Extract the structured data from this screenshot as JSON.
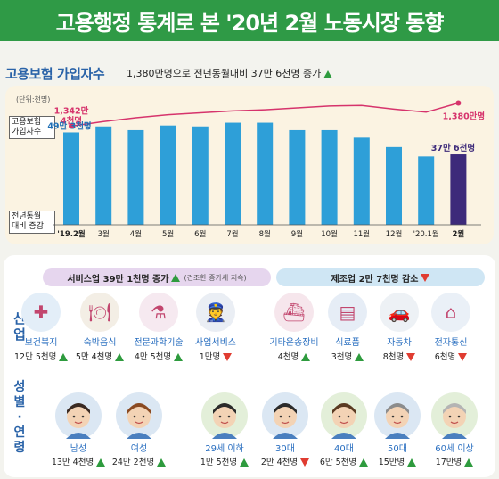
{
  "banner": {
    "title": "고용행정 통계로 본 '20년 2월 노동시장 동향"
  },
  "section1": {
    "title": "고용보험 가입자수",
    "subtitle": "1,380만명으로 전년동월대비 37만 6천명 증가"
  },
  "chart": {
    "unit": "(단위:천명)",
    "line_label": "고용보험\n가입자수",
    "bar_label": "전년동월\n대비 증감",
    "first_line_value": "1,342만\n4천명",
    "last_line_value": "1,380만명",
    "first_bar_value": "49만 3천명",
    "last_bar_value": "37만 6천명",
    "colors": {
      "bar": "#2e9fd8",
      "last_bar": "#3d2a7a",
      "line": "#d6336c"
    }
  },
  "chart_data": {
    "type": "bar",
    "categories": [
      "'19.2월",
      "3월",
      "4월",
      "5월",
      "6월",
      "7월",
      "8월",
      "9월",
      "10월",
      "11월",
      "12월",
      "'20.1월",
      "2월"
    ],
    "series": [
      {
        "name": "전년동월 대비 증감",
        "values": [
          493,
          525,
          505,
          530,
          525,
          545,
          545,
          505,
          505,
          465,
          415,
          365,
          376
        ]
      },
      {
        "name": "고용보험 가입자수",
        "values": [
          13424,
          13500,
          13560,
          13610,
          13640,
          13670,
          13690,
          13720,
          13750,
          13760,
          13700,
          13650,
          13800
        ]
      }
    ]
  },
  "industry": {
    "label": "산\n업",
    "service_pill": "서비스업 39만 1천명 증가",
    "service_note": "(견조한 증가세 지속)",
    "manufacturing_pill": "제조업 2만 7천명 감소",
    "items": [
      {
        "name": "보건복지",
        "value": "12만 5천명",
        "dir": "up",
        "icon": "health-icon"
      },
      {
        "name": "숙박음식",
        "value": "5만 4천명",
        "dir": "up",
        "icon": "food-icon"
      },
      {
        "name": "전문과학기술",
        "value": "4만 5천명",
        "dir": "up",
        "icon": "science-icon"
      },
      {
        "name": "사업서비스",
        "value": "1만명",
        "dir": "down",
        "icon": "security-guard-icon"
      },
      {
        "name": "기타운송장비",
        "value": "4천명",
        "dir": "up",
        "icon": "ship-icon"
      },
      {
        "name": "식료품",
        "value": "3천명",
        "dir": "up",
        "icon": "food-package-icon"
      },
      {
        "name": "자동차",
        "value": "8천명",
        "dir": "down",
        "icon": "car-icon"
      },
      {
        "name": "전자통신",
        "value": "6천명",
        "dir": "down",
        "icon": "wifi-laptop-icon"
      }
    ]
  },
  "demographic": {
    "label": "성\n별\n·\n연\n령",
    "items": [
      {
        "name": "남성",
        "value": "13만 4천명",
        "dir": "up"
      },
      {
        "name": "여성",
        "value": "24만 2천명",
        "dir": "up"
      },
      {
        "name": "29세 이하",
        "value": "1만 5천명",
        "dir": "up"
      },
      {
        "name": "30대",
        "value": "2만 4천명",
        "dir": "down"
      },
      {
        "name": "40대",
        "value": "6만 5천명",
        "dir": "up"
      },
      {
        "name": "50대",
        "value": "15만명",
        "dir": "up"
      },
      {
        "name": "60세 이상",
        "value": "17만명",
        "dir": "up"
      }
    ]
  }
}
